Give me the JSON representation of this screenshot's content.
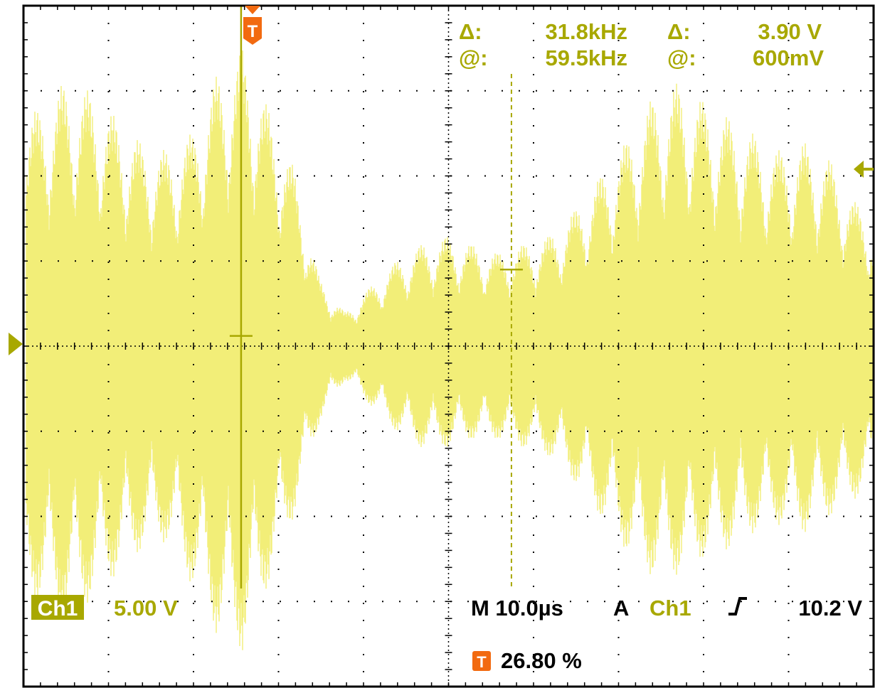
{
  "theme": {
    "trace_color": "#f2ee78",
    "trace_edge": "#e8e35a",
    "readout_color": "#a8a800",
    "marker_color": "#f26a10",
    "frame_color": "#000000",
    "grid_color": "#000000"
  },
  "cursor_readout": {
    "delta_symbol_1": "Δ:",
    "delta_freq": "31.8kHz",
    "at_symbol_1": "@:",
    "at_freq": "59.5kHz",
    "delta_symbol_2": "Δ:",
    "delta_volt": "3.90 V",
    "at_symbol_2": "@:",
    "at_volt": "600mV"
  },
  "channel": {
    "badge": "Ch1",
    "scale": "5.00 V"
  },
  "timebase": {
    "label": "M 10.0µs",
    "trigger_mode": "A",
    "trigger_source": "Ch1",
    "trigger_slope_icon": "rising-edge-icon",
    "trigger_level": "10.2 V"
  },
  "trigger_position": {
    "marker": "T",
    "value": "26.80 %"
  },
  "chart_data": {
    "type": "line",
    "title": "",
    "xlabel": "",
    "ylabel": "",
    "grid": true,
    "x_divisions": 10,
    "y_divisions": 8,
    "time_per_division_us": 10.0,
    "volts_per_division": 5.0,
    "xlim_us": [
      -26.8,
      73.2
    ],
    "ylim_v": [
      -20,
      20
    ],
    "series": [
      {
        "label": "Ch1",
        "envelope_description": "amplitude-modulated burst",
        "time_us": [
          -26.8,
          -25,
          -22,
          -19,
          -16,
          -13,
          -10,
          -7,
          -4,
          -1,
          2,
          5,
          8,
          11,
          14,
          17,
          20,
          23,
          26,
          29,
          32,
          35,
          38,
          41,
          44,
          47,
          50,
          53,
          56,
          59,
          62,
          65,
          68,
          71,
          73.2
        ],
        "peak_v": [
          13.5,
          14.0,
          15.5,
          15.0,
          13.5,
          12.0,
          11.5,
          12.5,
          16.0,
          17.5,
          14.0,
          10.5,
          4.0,
          2.0,
          3.5,
          5.0,
          6.0,
          6.5,
          6.0,
          5.5,
          6.0,
          6.5,
          8.0,
          10.0,
          12.0,
          14.5,
          15.5,
          14.5,
          13.5,
          12.5,
          11.5,
          12.0,
          11.0,
          8.5,
          7.5
        ],
        "trough_v": [
          -14.0,
          -15.0,
          -16.0,
          -15.0,
          -13.5,
          -12.0,
          -11.5,
          -14.0,
          -17.0,
          -18.0,
          -14.0,
          -10.0,
          -4.5,
          -2.0,
          -3.5,
          -5.0,
          -6.0,
          -6.0,
          -5.5,
          -5.5,
          -6.0,
          -6.5,
          -8.0,
          -10.0,
          -12.0,
          -13.5,
          -13.5,
          -12.5,
          -12.0,
          -11.0,
          -10.5,
          -11.0,
          -10.0,
          -9.0,
          -8.0
        ]
      }
    ],
    "cursors": {
      "vertical_time_us": [
        -1.2,
        30.6
      ],
      "horizontal_v": [
        0.6,
        4.5
      ]
    },
    "markers": {
      "trigger_level_v": 10.2,
      "ground_level_v": 0
    }
  }
}
